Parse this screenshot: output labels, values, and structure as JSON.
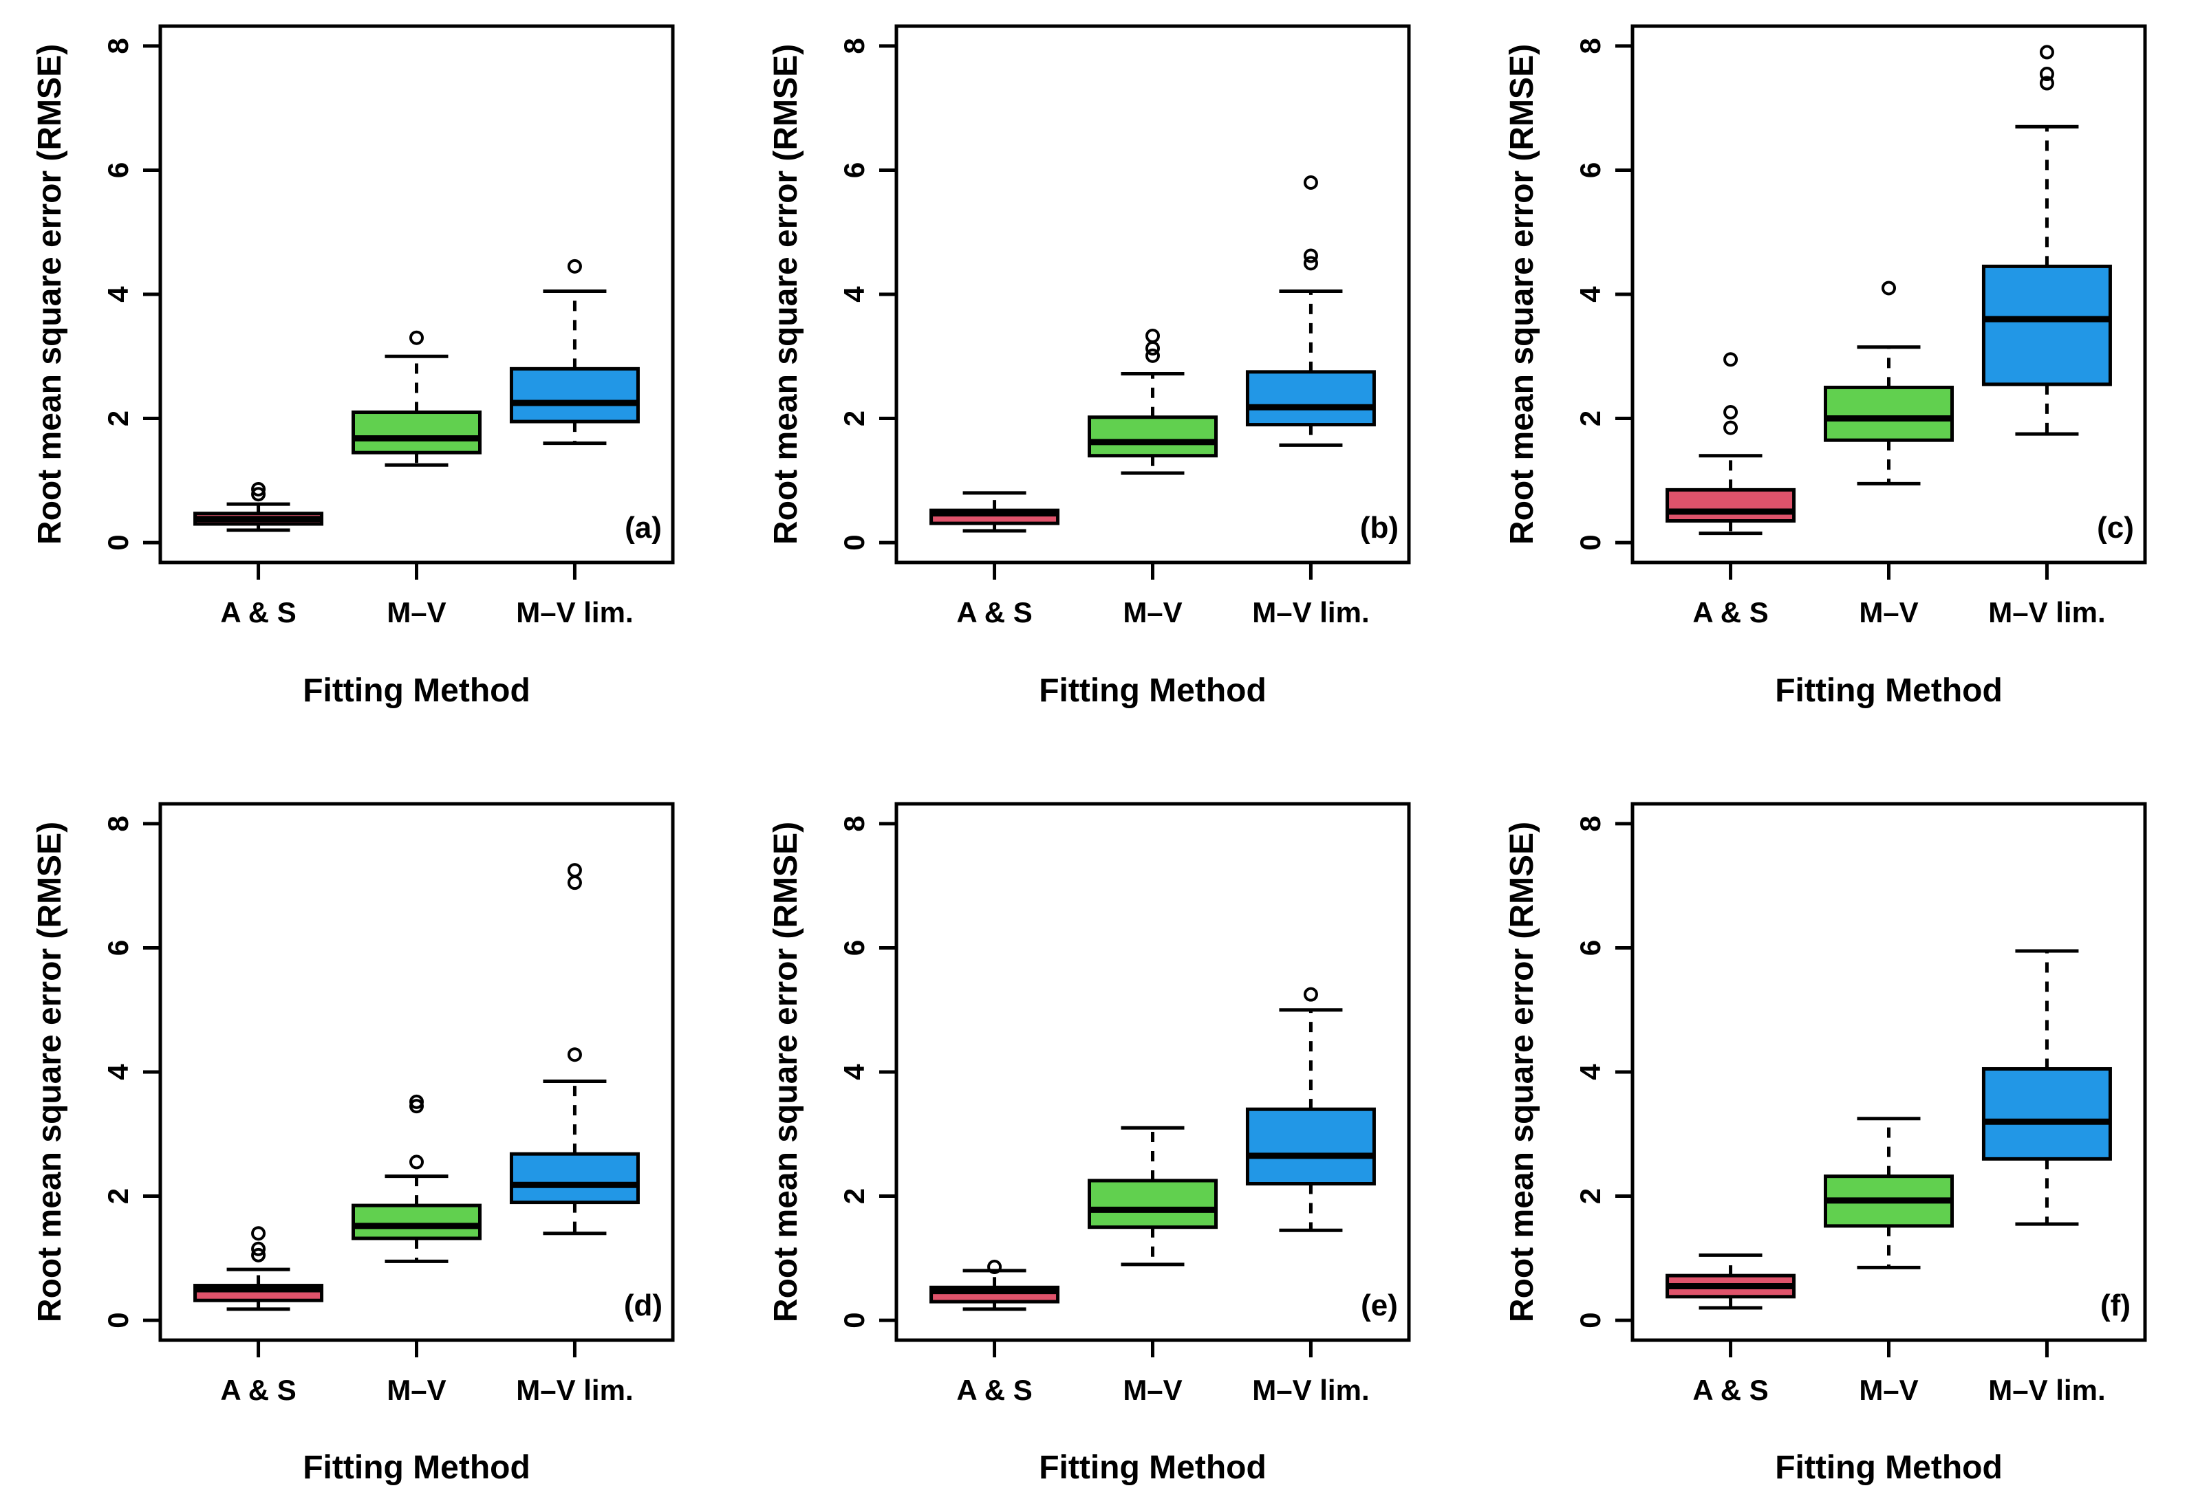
{
  "figure": {
    "background": "#ffffff",
    "ylabel": "Root mean square error (RMSE)",
    "xlabel": "Fitting Method",
    "categories": [
      "A & S",
      "M–V",
      "M–V lim."
    ],
    "panel_labels": [
      "(a)",
      "(b)",
      "(c)",
      "(d)",
      "(e)",
      "(f)"
    ],
    "colors": {
      "a_and_s": "#DF536B",
      "m_v": "#61D04F",
      "m_v_lim": "#2297E6",
      "line": "#000000"
    }
  },
  "chart_data": [
    {
      "type": "boxplot",
      "panel_label": "(a)",
      "xlabel": "Fitting Method",
      "ylabel": "Root mean square error (RMSE)",
      "categories": [
        "A & S",
        "M–V",
        "M–V lim."
      ],
      "yticks": [
        0,
        2,
        4,
        6,
        8
      ],
      "ylim": [
        -0.32,
        8.32
      ],
      "grid": false,
      "boxes": [
        {
          "category": "A & S",
          "color": "#DF536B",
          "whisker_low": 0.2,
          "q1": 0.3,
          "median": 0.38,
          "q3": 0.47,
          "whisker_high": 0.62,
          "outliers": [
            0.78,
            0.86
          ]
        },
        {
          "category": "M–V",
          "color": "#61D04F",
          "whisker_low": 1.25,
          "q1": 1.45,
          "median": 1.68,
          "q3": 2.1,
          "whisker_high": 3.0,
          "outliers": [
            3.3
          ]
        },
        {
          "category": "M–V lim.",
          "color": "#2297E6",
          "whisker_low": 1.6,
          "q1": 1.95,
          "median": 2.25,
          "q3": 2.8,
          "whisker_high": 4.05,
          "outliers": [
            4.45
          ]
        }
      ]
    },
    {
      "type": "boxplot",
      "panel_label": "(b)",
      "xlabel": "Fitting Method",
      "ylabel": "Root mean square error (RMSE)",
      "categories": [
        "A & S",
        "M–V",
        "M–V lim."
      ],
      "yticks": [
        0,
        2,
        4,
        6,
        8
      ],
      "ylim": [
        -0.32,
        8.32
      ],
      "grid": false,
      "boxes": [
        {
          "category": "A & S",
          "color": "#DF536B",
          "whisker_low": 0.19,
          "q1": 0.31,
          "median": 0.47,
          "q3": 0.52,
          "whisker_high": 0.8,
          "outliers": []
        },
        {
          "category": "M–V",
          "color": "#61D04F",
          "whisker_low": 1.12,
          "q1": 1.4,
          "median": 1.62,
          "q3": 2.02,
          "whisker_high": 2.72,
          "outliers": [
            3.01,
            3.13,
            3.33
          ]
        },
        {
          "category": "M–V lim.",
          "color": "#2297E6",
          "whisker_low": 1.57,
          "q1": 1.9,
          "median": 2.18,
          "q3": 2.75,
          "whisker_high": 4.05,
          "outliers": [
            4.5,
            4.62,
            5.8
          ]
        }
      ]
    },
    {
      "type": "boxplot",
      "panel_label": "(c)",
      "xlabel": "Fitting Method",
      "ylabel": "Root mean square error (RMSE)",
      "categories": [
        "A & S",
        "M–V",
        "M–V lim."
      ],
      "yticks": [
        0,
        2,
        4,
        6,
        8
      ],
      "ylim": [
        -0.32,
        8.32
      ],
      "grid": false,
      "boxes": [
        {
          "category": "A & S",
          "color": "#DF536B",
          "whisker_low": 0.15,
          "q1": 0.35,
          "median": 0.5,
          "q3": 0.85,
          "whisker_high": 1.4,
          "outliers": [
            1.85,
            2.1,
            2.95
          ]
        },
        {
          "category": "M–V",
          "color": "#61D04F",
          "whisker_low": 0.95,
          "q1": 1.65,
          "median": 2.0,
          "q3": 2.5,
          "whisker_high": 3.15,
          "outliers": [
            4.1
          ]
        },
        {
          "category": "M–V lim.",
          "color": "#2297E6",
          "whisker_low": 1.75,
          "q1": 2.55,
          "median": 3.6,
          "q3": 4.45,
          "whisker_high": 6.7,
          "outliers": [
            7.4,
            7.55,
            7.9
          ]
        }
      ]
    },
    {
      "type": "boxplot",
      "panel_label": "(d)",
      "xlabel": "Fitting Method",
      "ylabel": "Root mean square error (RMSE)",
      "categories": [
        "A & S",
        "M–V",
        "M–V lim."
      ],
      "yticks": [
        0,
        2,
        4,
        6,
        8
      ],
      "ylim": [
        -0.32,
        8.32
      ],
      "grid": false,
      "boxes": [
        {
          "category": "A & S",
          "color": "#DF536B",
          "whisker_low": 0.18,
          "q1": 0.32,
          "median": 0.5,
          "q3": 0.56,
          "whisker_high": 0.82,
          "outliers": [
            1.05,
            1.15,
            1.4
          ]
        },
        {
          "category": "M–V",
          "color": "#61D04F",
          "whisker_low": 0.95,
          "q1": 1.32,
          "median": 1.52,
          "q3": 1.85,
          "whisker_high": 2.32,
          "outliers": [
            2.55,
            3.45,
            3.52
          ]
        },
        {
          "category": "M–V lim.",
          "color": "#2297E6",
          "whisker_low": 1.4,
          "q1": 1.9,
          "median": 2.18,
          "q3": 2.68,
          "whisker_high": 3.85,
          "outliers": [
            4.28,
            7.05,
            7.25
          ]
        }
      ]
    },
    {
      "type": "boxplot",
      "panel_label": "(e)",
      "xlabel": "Fitting Method",
      "ylabel": "Root mean square error (RMSE)",
      "categories": [
        "A & S",
        "M–V",
        "M–V lim."
      ],
      "yticks": [
        0,
        2,
        4,
        6,
        8
      ],
      "ylim": [
        -0.32,
        8.32
      ],
      "grid": false,
      "boxes": [
        {
          "category": "A & S",
          "color": "#DF536B",
          "whisker_low": 0.18,
          "q1": 0.3,
          "median": 0.47,
          "q3": 0.53,
          "whisker_high": 0.8,
          "outliers": [
            0.86
          ]
        },
        {
          "category": "M–V",
          "color": "#61D04F",
          "whisker_low": 0.9,
          "q1": 1.5,
          "median": 1.78,
          "q3": 2.25,
          "whisker_high": 3.1,
          "outliers": []
        },
        {
          "category": "M–V lim.",
          "color": "#2297E6",
          "whisker_low": 1.45,
          "q1": 2.2,
          "median": 2.65,
          "q3": 3.4,
          "whisker_high": 5.0,
          "outliers": [
            5.25
          ]
        }
      ]
    },
    {
      "type": "boxplot",
      "panel_label": "(f)",
      "xlabel": "Fitting Method",
      "ylabel": "Root mean square error (RMSE)",
      "categories": [
        "A & S",
        "M–V",
        "M–V lim."
      ],
      "yticks": [
        0,
        2,
        4,
        6,
        8
      ],
      "ylim": [
        -0.32,
        8.32
      ],
      "grid": false,
      "boxes": [
        {
          "category": "A & S",
          "color": "#DF536B",
          "whisker_low": 0.2,
          "q1": 0.38,
          "median": 0.55,
          "q3": 0.72,
          "whisker_high": 1.05,
          "outliers": []
        },
        {
          "category": "M–V",
          "color": "#61D04F",
          "whisker_low": 0.85,
          "q1": 1.52,
          "median": 1.93,
          "q3": 2.32,
          "whisker_high": 3.25,
          "outliers": []
        },
        {
          "category": "M–V lim.",
          "color": "#2297E6",
          "whisker_low": 1.55,
          "q1": 2.6,
          "median": 3.2,
          "q3": 4.05,
          "whisker_high": 5.95,
          "outliers": []
        }
      ]
    }
  ]
}
